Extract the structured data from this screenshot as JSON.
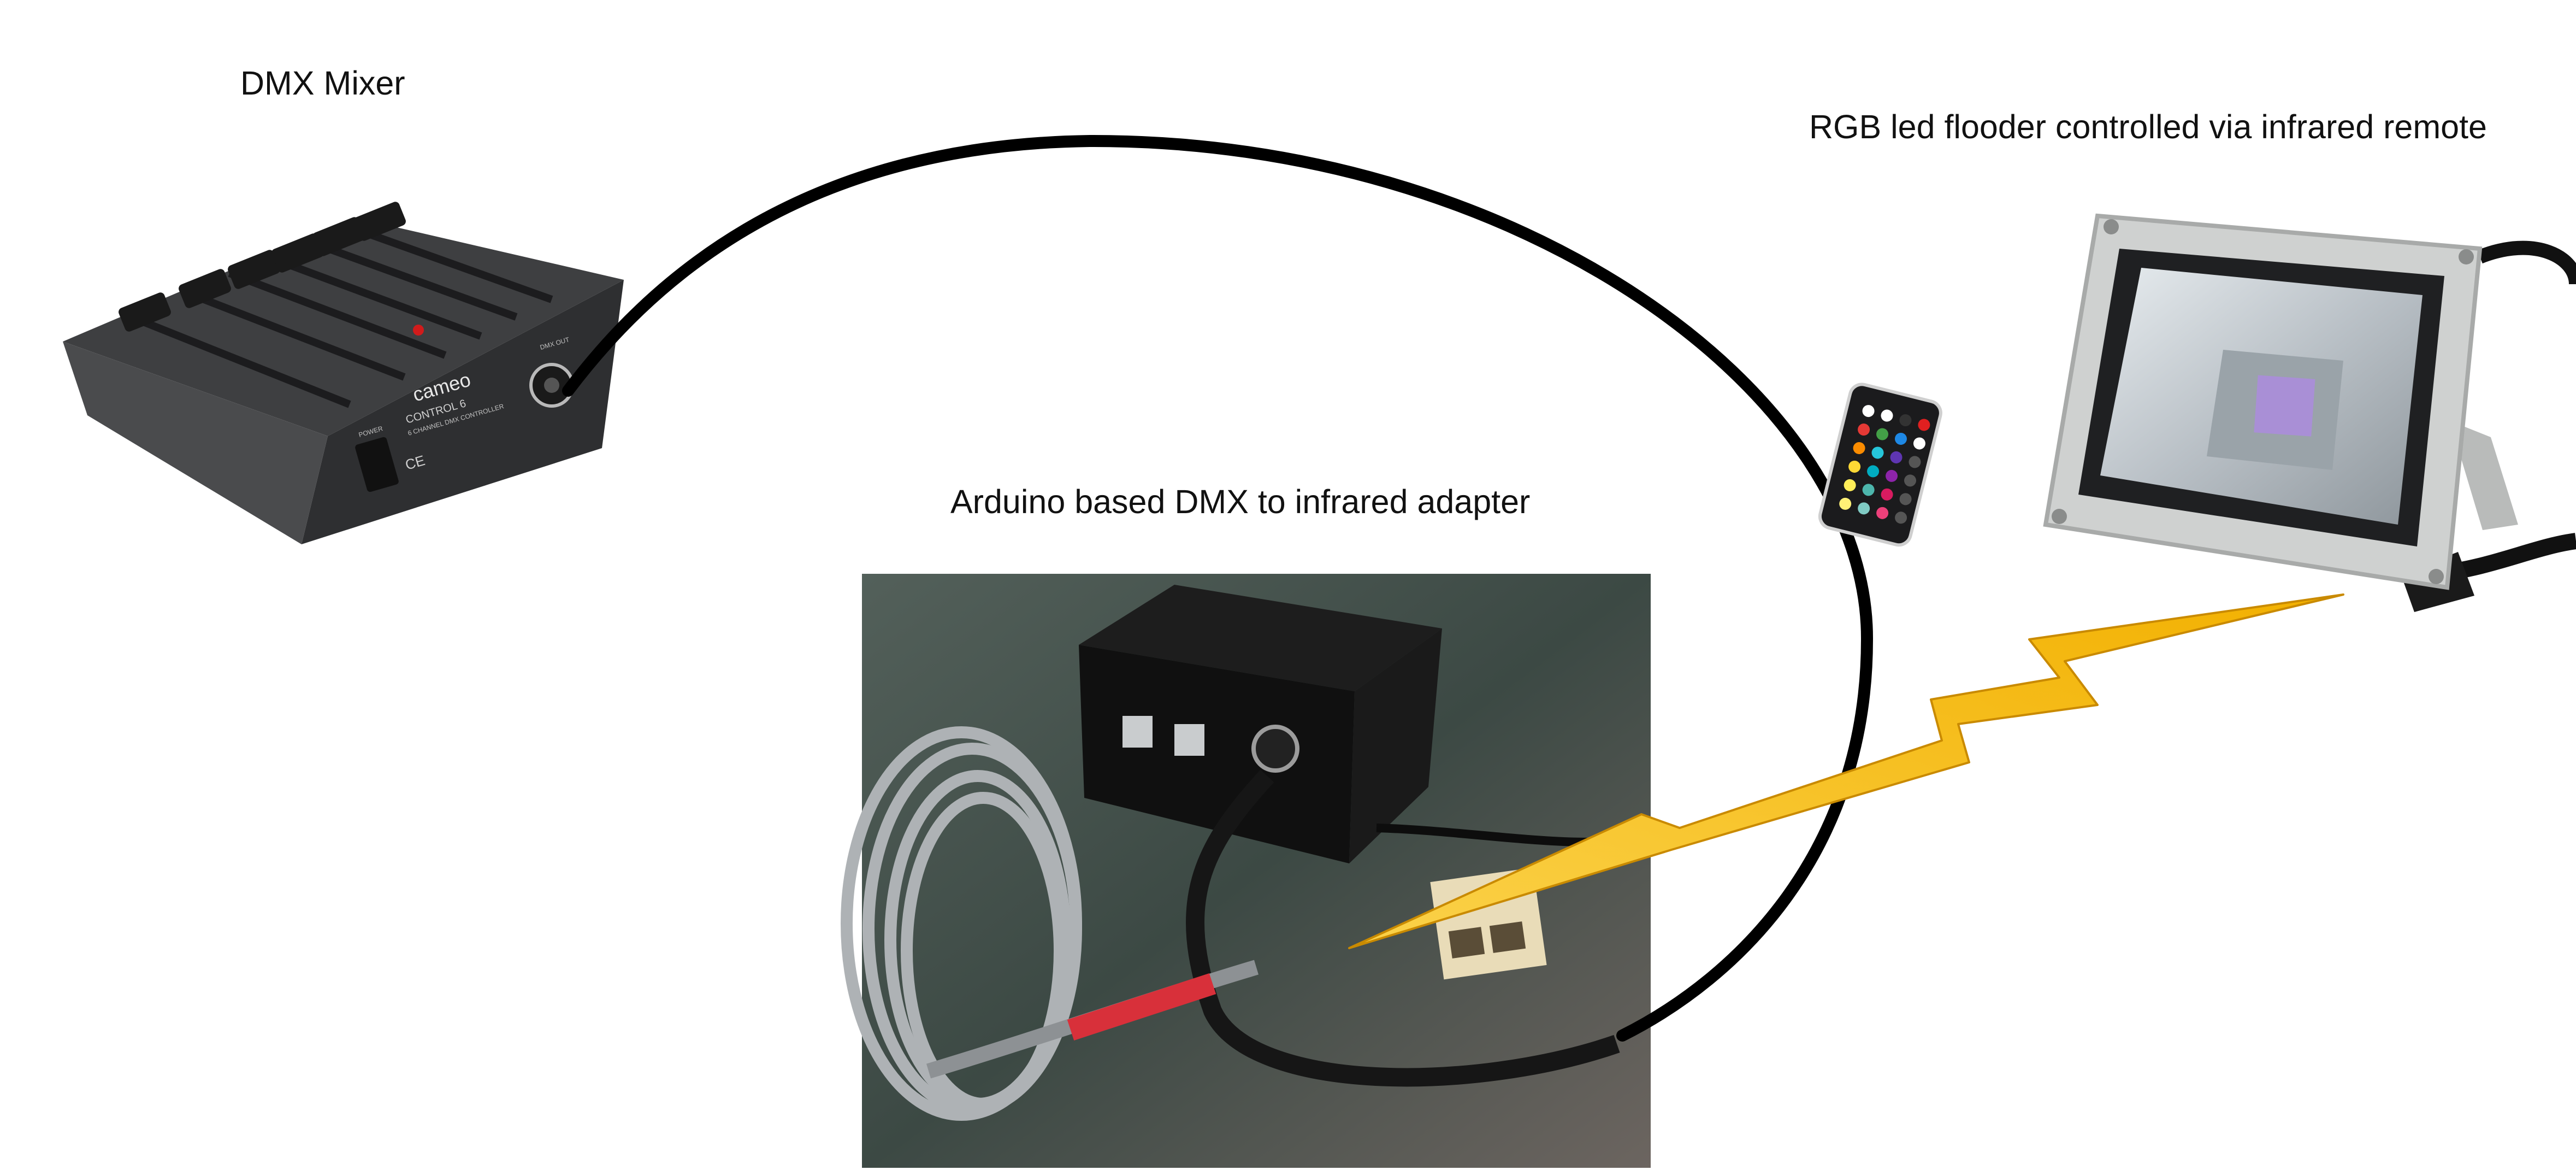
{
  "labels": {
    "mixer": "DMX Mixer",
    "flooder": "RGB led flooder controlled via infrared remote",
    "adapter": "Arduino based DMX to infrared adapter"
  },
  "mixer_panel": {
    "brand": "cameo",
    "model": "CONTROL 6",
    "subtitle": "6 CHANNEL DMX CONTROLLER",
    "power": "POWER",
    "dmx_out": "DMX OUT",
    "ce": "CE"
  },
  "colors": {
    "cable": "#000000",
    "bolt_fill": "#f6c21a",
    "bolt_stroke": "#c98a00",
    "mixer_body": "#3b3c3e",
    "flooder_frame": "#c9cbca",
    "photo_bg": "#2f3b36"
  },
  "icons": [
    "lightning-bolt-icon",
    "power-switch-icon",
    "xlr-connector-icon",
    "rj45-port-icon"
  ]
}
